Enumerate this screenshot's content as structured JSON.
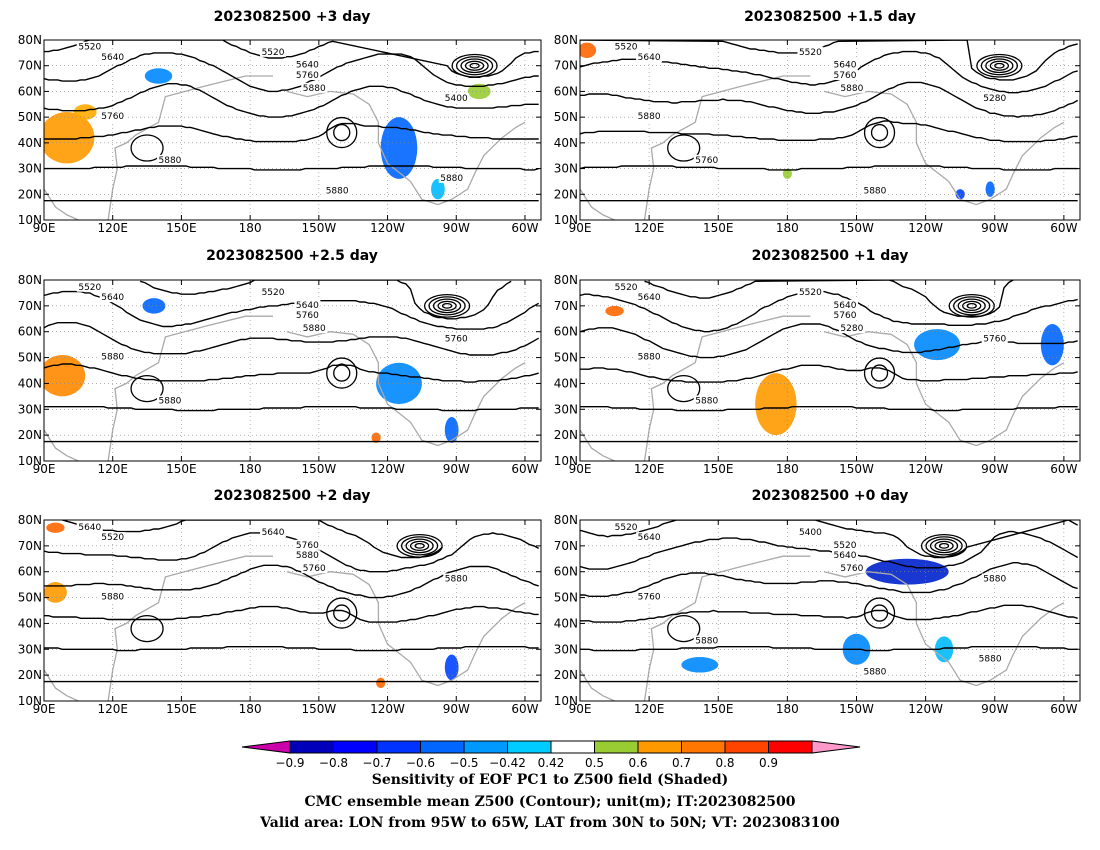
{
  "panels": [
    {
      "id": "p3",
      "title": "2023082500  +3 day",
      "contour_labels": [
        "5520",
        "5640",
        "5520",
        "5640",
        "5760",
        "5880",
        "5400",
        "5760",
        "5880",
        "5880",
        "5880"
      ],
      "shades": [
        {
          "lon": 100,
          "lat": 42,
          "color": "#ff9900",
          "rx": 12,
          "ry": 10
        },
        {
          "lon": 108,
          "lat": 52,
          "color": "#ffaa00",
          "rx": 5,
          "ry": 3
        },
        {
          "lon": 140,
          "lat": 66,
          "color": "#0088ff",
          "rx": 6,
          "ry": 3
        },
        {
          "lon": 245,
          "lat": 38,
          "color": "#0066ff",
          "rx": 8,
          "ry": 12
        },
        {
          "lon": 262,
          "lat": 22,
          "color": "#00bbff",
          "rx": 3,
          "ry": 4
        },
        {
          "lon": 280,
          "lat": 60,
          "color": "#99cc33",
          "rx": 5,
          "ry": 3
        }
      ]
    },
    {
      "id": "p15",
      "title": "2023082500  +1.5 day",
      "contour_labels": [
        "5520",
        "5640",
        "5520",
        "5640",
        "5760",
        "5880",
        "5280",
        "5880",
        "5760",
        "5880"
      ],
      "shades": [
        {
          "lon": 93,
          "lat": 76,
          "color": "#ff6600",
          "rx": 4,
          "ry": 3
        },
        {
          "lon": 255,
          "lat": 20,
          "color": "#0044ff",
          "rx": 2,
          "ry": 2
        },
        {
          "lon": 180,
          "lat": 28,
          "color": "#99cc33",
          "rx": 2,
          "ry": 2
        },
        {
          "lon": 268,
          "lat": 22,
          "color": "#0066ff",
          "rx": 2,
          "ry": 3
        }
      ]
    },
    {
      "id": "p25",
      "title": "2023082500  +2.5 day",
      "contour_labels": [
        "5520",
        "5640",
        "5520",
        "5640",
        "5760",
        "5880",
        "5760",
        "5880",
        "5880"
      ],
      "shades": [
        {
          "lon": 98,
          "lat": 43,
          "color": "#ff8800",
          "rx": 10,
          "ry": 8
        },
        {
          "lon": 138,
          "lat": 70,
          "color": "#0066ff",
          "rx": 5,
          "ry": 3
        },
        {
          "lon": 245,
          "lat": 40,
          "color": "#0088ff",
          "rx": 10,
          "ry": 8
        },
        {
          "lon": 268,
          "lat": 22,
          "color": "#0066ff",
          "rx": 3,
          "ry": 5
        },
        {
          "lon": 235,
          "lat": 19,
          "color": "#ff6600",
          "rx": 2,
          "ry": 2
        }
      ]
    },
    {
      "id": "p1",
      "title": "2023082500  +1 day",
      "contour_labels": [
        "5520",
        "5640",
        "5520",
        "5640",
        "5760",
        "5280",
        "5760",
        "5880",
        "5880"
      ],
      "shades": [
        {
          "lon": 175,
          "lat": 32,
          "color": "#ff9900",
          "rx": 9,
          "ry": 12
        },
        {
          "lon": 245,
          "lat": 55,
          "color": "#0088ff",
          "rx": 10,
          "ry": 6
        },
        {
          "lon": 295,
          "lat": 55,
          "color": "#0066ff",
          "rx": 5,
          "ry": 8
        },
        {
          "lon": 105,
          "lat": 68,
          "color": "#ff6600",
          "rx": 4,
          "ry": 2
        }
      ]
    },
    {
      "id": "p2",
      "title": "2023082500  +2 day",
      "contour_labels": [
        "5640",
        "5520",
        "5640",
        "5760",
        "5880",
        "5760",
        "5880",
        "5880"
      ],
      "shades": [
        {
          "lon": 95,
          "lat": 52,
          "color": "#ff9900",
          "rx": 5,
          "ry": 4
        },
        {
          "lon": 95,
          "lat": 77,
          "color": "#ff6600",
          "rx": 4,
          "ry": 2
        },
        {
          "lon": 268,
          "lat": 23,
          "color": "#0044ff",
          "rx": 3,
          "ry": 5
        },
        {
          "lon": 237,
          "lat": 17,
          "color": "#ff6600",
          "rx": 2,
          "ry": 2
        }
      ]
    },
    {
      "id": "p0",
      "title": "2023082500  +0 day",
      "contour_labels": [
        "5520",
        "5640",
        "5400",
        "5520",
        "5640",
        "5760",
        "5880",
        "5760",
        "5880",
        "5880",
        "5880"
      ],
      "shades": [
        {
          "lon": 232,
          "lat": 60,
          "color": "#0022cc",
          "rx": 18,
          "ry": 5
        },
        {
          "lon": 142,
          "lat": 24,
          "color": "#0088ff",
          "rx": 8,
          "ry": 3
        },
        {
          "lon": 210,
          "lat": 30,
          "color": "#0088ff",
          "rx": 6,
          "ry": 6
        },
        {
          "lon": 248,
          "lat": 30,
          "color": "#00bbff",
          "rx": 4,
          "ry": 5
        }
      ]
    }
  ],
  "axes": {
    "lon_labels": [
      "90E",
      "120E",
      "150E",
      "180",
      "150W",
      "120W",
      "90W",
      "60W"
    ],
    "lat_labels": [
      "80N",
      "70N",
      "60N",
      "50N",
      "40N",
      "30N",
      "20N",
      "10N"
    ]
  },
  "colorbar": {
    "ticks": [
      "−0.9",
      "−0.8",
      "−0.7",
      "−0.6",
      "−0.5",
      "−0.42",
      "0.42",
      "0.5",
      "0.6",
      "0.7",
      "0.8",
      "0.9"
    ],
    "colors": [
      "#cc00aa",
      "#0000bb",
      "#0000ff",
      "#0033ff",
      "#0066ff",
      "#0099ff",
      "#00ccff",
      "#ffffff",
      "#99cc33",
      "#ff9900",
      "#ff7700",
      "#ff4400",
      "#ff0000",
      "#ff99cc"
    ]
  },
  "footer": {
    "line1": "Sensitivity of EOF PC1 to Z500 field (Shaded)",
    "line2": "CMC ensemble mean Z500 (Contour); unit(m); IT:2023082500",
    "line3": "Valid area: LON from 95W to 65W, LAT from 30N to 50N; VT: 2023083100"
  }
}
